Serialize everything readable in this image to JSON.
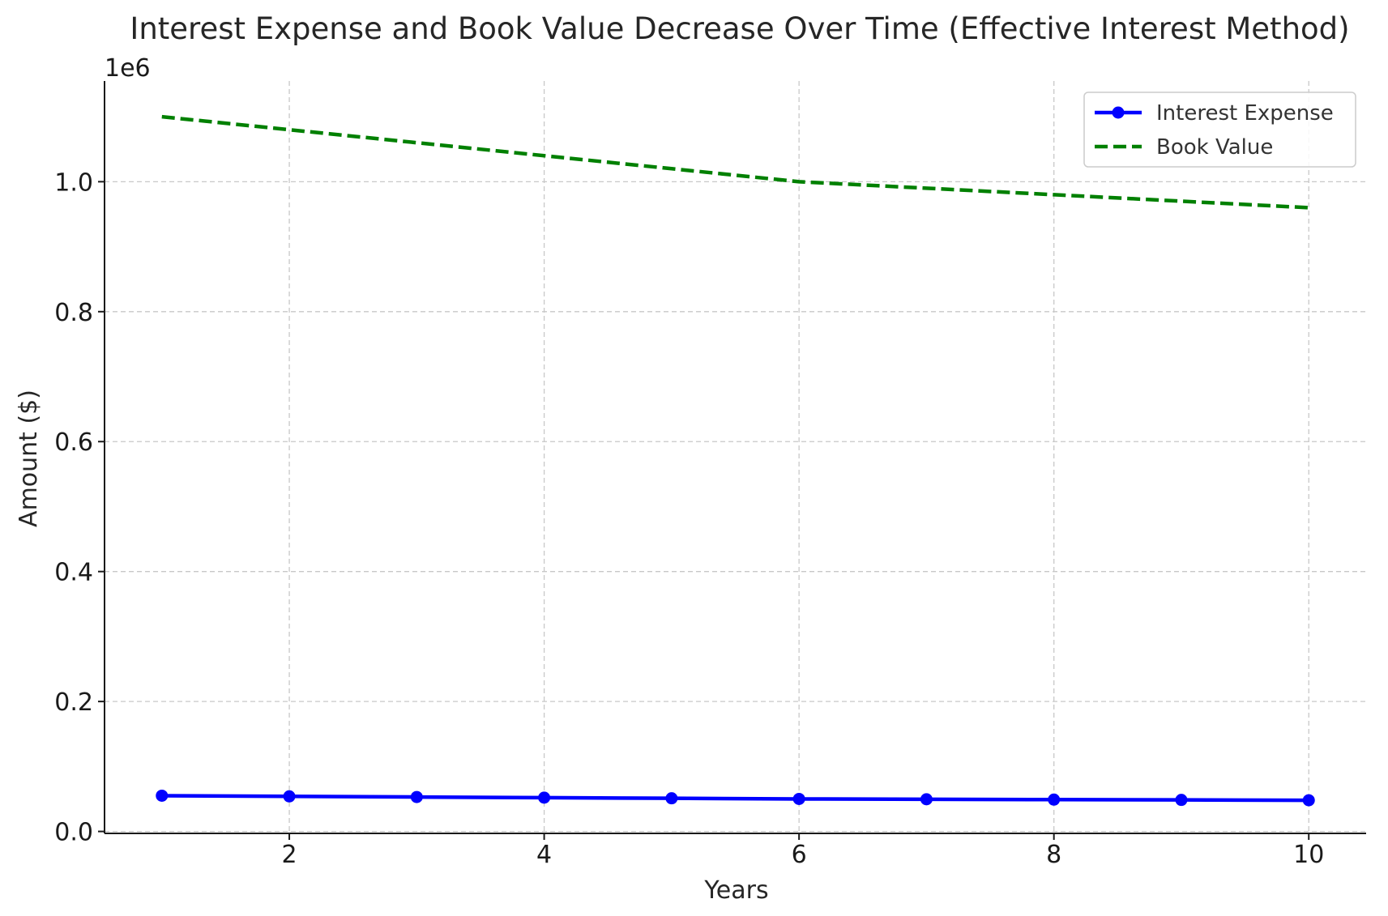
{
  "chart_data": {
    "type": "line",
    "title": "Interest Expense and Book Value Decrease Over Time (Effective Interest Method)",
    "xlabel": "Years",
    "ylabel": "Amount ($)",
    "y_offset_label": "1e6",
    "x": [
      1,
      2,
      3,
      4,
      5,
      6,
      7,
      8,
      9,
      10
    ],
    "xlim": [
      0.55,
      10.45
    ],
    "ylim": [
      -3000,
      1155000
    ],
    "x_ticks": [
      2,
      4,
      6,
      8,
      10
    ],
    "x_tick_labels": [
      "2",
      "4",
      "6",
      "8",
      "10"
    ],
    "y_ticks": [
      0,
      200000,
      400000,
      600000,
      800000,
      1000000
    ],
    "y_tick_labels": [
      "0.0",
      "0.2",
      "0.4",
      "0.6",
      "0.8",
      "1.0"
    ],
    "grid": true,
    "legend_position": "top-right",
    "series": [
      {
        "name": "Interest Expense",
        "color": "#0000ff",
        "style": "solid-markers",
        "values": [
          55000,
          54000,
          53000,
          52000,
          51000,
          50000,
          49500,
          49000,
          48500,
          48000
        ]
      },
      {
        "name": "Book Value",
        "color": "#008000",
        "style": "dashed",
        "values": [
          1100000,
          1080000,
          1060000,
          1040000,
          1020000,
          1000000,
          990000,
          980000,
          970000,
          960000
        ]
      }
    ]
  }
}
